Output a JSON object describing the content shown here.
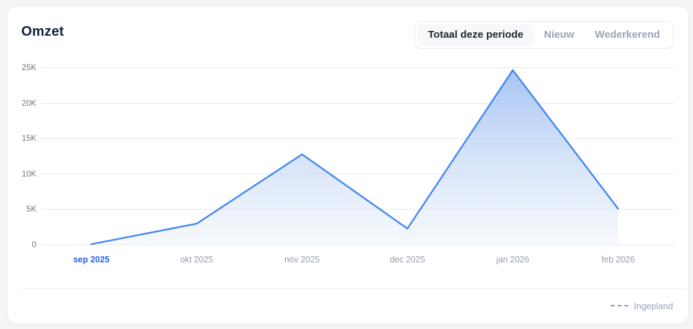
{
  "header": {
    "title": "Omzet",
    "tabs": [
      {
        "label": "Totaal deze periode",
        "active": true
      },
      {
        "label": "Nieuw",
        "active": false
      },
      {
        "label": "Wederkerend",
        "active": false
      }
    ]
  },
  "chart_data": {
    "type": "area",
    "title": "Omzet",
    "categories": [
      "sep 2025",
      "okt 2025",
      "nov 2025",
      "dec 2025",
      "jan 2026",
      "feb 2026"
    ],
    "values": [
      0,
      2900,
      12700,
      2200,
      24600,
      5000
    ],
    "xlabel": "",
    "ylabel": "",
    "ylim": [
      0,
      25000
    ],
    "ytick_labels": [
      "0",
      "5K",
      "10K",
      "15K",
      "20K",
      "25K"
    ],
    "grid": true,
    "legend_position": "bottom-right",
    "highlighted_category": "sep 2025",
    "colors": {
      "line": "#4285f4",
      "fill_top": "#9cbef2",
      "fill_bottom": "#eef3fb",
      "highlight_label": "#1f5fea"
    }
  },
  "legend": {
    "label": "Ingepland",
    "style": "dashed",
    "color": "#8c9ab8"
  }
}
